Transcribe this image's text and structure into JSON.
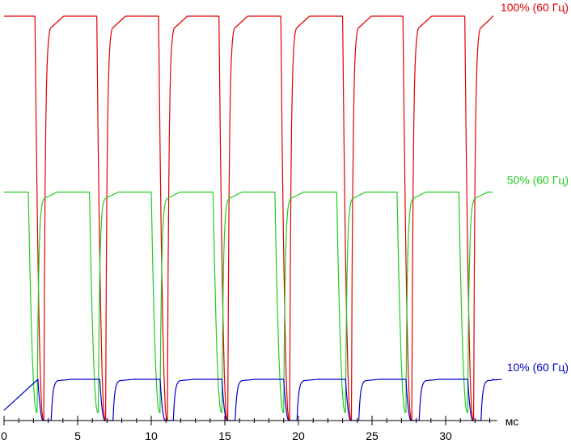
{
  "chart_data": {
    "type": "line",
    "title": "",
    "xlabel": "мс",
    "ylabel": "",
    "xlim": [
      0,
      33.5
    ],
    "ylim": [
      0,
      100
    ],
    "grid": false,
    "x_ticks": [
      "0",
      "5",
      "10",
      "15",
      "20",
      "25",
      "30"
    ],
    "period_ms": 4.17,
    "series": [
      {
        "name": "100% (60 Гц)",
        "color": "#e00000",
        "high": 100,
        "low": 0,
        "fall_start_ms": [
          2.1,
          6.3,
          10.5,
          14.6,
          18.8,
          23.0,
          27.1,
          31.3
        ]
      },
      {
        "name": "50% (60 Гц)",
        "color": "#22cc22",
        "high": 56.5,
        "low": 2.0,
        "fall_start_ms": [
          1.65,
          5.8,
          10.0,
          14.2,
          18.4,
          22.6,
          26.7,
          30.9
        ]
      },
      {
        "name": "10% (60 Гц)",
        "color": "#0000cc",
        "high": 10.2,
        "low": 0,
        "fall_start_ms": [
          2.3,
          6.5,
          10.6,
          14.8,
          19.0,
          23.2,
          27.3,
          31.5
        ]
      }
    ]
  }
}
